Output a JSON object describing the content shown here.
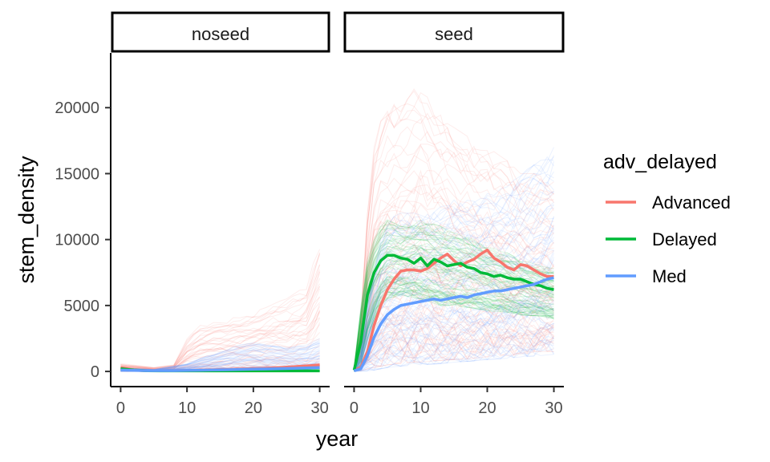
{
  "chart_data": {
    "type": "line",
    "facet_variable_values": [
      "noseed",
      "seed"
    ],
    "xlabel": "year",
    "ylabel": "stem_density",
    "xlim": [
      -1.5,
      31.5
    ],
    "ylim": [
      -1150,
      24150
    ],
    "x_ticks": [
      0,
      10,
      20,
      30
    ],
    "y_ticks": [
      0,
      5000,
      10000,
      15000,
      20000
    ],
    "x_tick_labels": [
      "0",
      "10",
      "20",
      "30"
    ],
    "y_tick_labels": [
      "0",
      "5000",
      "10000",
      "15000",
      "20000"
    ],
    "grid": false,
    "legend": {
      "title": "adv_delayed",
      "position": "right",
      "entries": [
        "Advanced",
        "Delayed",
        "Med"
      ]
    },
    "colors": {
      "Advanced": "#F8766D",
      "Delayed": "#00BA38",
      "Med": "#619CFF"
    },
    "panels": [
      {
        "facet": "noseed",
        "series": [
          {
            "name": "Advanced",
            "x": [
              0,
              2,
              4,
              6,
              8,
              10,
              12,
              14,
              16,
              18,
              20,
              22,
              24,
              26,
              28,
              30
            ],
            "y": [
              300,
              100,
              50,
              50,
              60,
              80,
              100,
              130,
              160,
              180,
              220,
              250,
              300,
              350,
              420,
              500
            ]
          },
          {
            "name": "Delayed",
            "x": [
              0,
              2,
              4,
              6,
              8,
              10,
              12,
              14,
              16,
              18,
              20,
              22,
              24,
              26,
              28,
              30
            ],
            "y": [
              200,
              100,
              50,
              40,
              40,
              40,
              40,
              40,
              40,
              40,
              40,
              40,
              40,
              40,
              40,
              40
            ]
          },
          {
            "name": "Med",
            "x": [
              0,
              2,
              4,
              6,
              8,
              10,
              12,
              14,
              16,
              18,
              20,
              22,
              24,
              26,
              28,
              30
            ],
            "y": [
              100,
              80,
              60,
              60,
              60,
              70,
              90,
              110,
              130,
              150,
              170,
              190,
              210,
              230,
              260,
              300
            ]
          }
        ],
        "ensemble_envelope": {
          "Advanced": {
            "x": [
              0,
              5,
              8,
              10,
              12,
              15,
              18,
              20,
              22,
              25,
              28,
              30
            ],
            "upper": [
              600,
              300,
              500,
              2500,
              3500,
              4000,
              4200,
              4500,
              5000,
              5500,
              6500,
              10000
            ]
          },
          "Med": {
            "x": [
              0,
              5,
              10,
              12,
              15,
              18,
              20,
              22,
              25,
              28,
              30
            ],
            "upper": [
              300,
              150,
              600,
              1000,
              1500,
              2000,
              2200,
              2000,
              1800,
              2000,
              2500
            ]
          }
        }
      },
      {
        "facet": "seed",
        "series": [
          {
            "name": "Advanced",
            "x": [
              0,
              1,
              2,
              3,
              4,
              5,
              6,
              7,
              8,
              9,
              10,
              11,
              12,
              13,
              14,
              15,
              16,
              17,
              18,
              19,
              20,
              21,
              22,
              23,
              24,
              25,
              26,
              27,
              28,
              29,
              30
            ],
            "y": [
              100,
              300,
              1500,
              3500,
              5000,
              6200,
              7000,
              7600,
              7700,
              7700,
              7600,
              7800,
              8200,
              8600,
              8900,
              8400,
              8000,
              8300,
              8500,
              8900,
              9200,
              8600,
              8300,
              7900,
              7700,
              8100,
              8000,
              7700,
              7400,
              7200,
              7200
            ]
          },
          {
            "name": "Delayed",
            "x": [
              0,
              1,
              2,
              3,
              4,
              5,
              6,
              7,
              8,
              9,
              10,
              11,
              12,
              13,
              14,
              15,
              16,
              17,
              18,
              19,
              20,
              21,
              22,
              23,
              24,
              25,
              26,
              27,
              28,
              29,
              30
            ],
            "y": [
              100,
              2200,
              5800,
              7500,
              8400,
              8800,
              8800,
              8600,
              8500,
              8200,
              8600,
              8000,
              8500,
              8300,
              8000,
              8100,
              8200,
              7900,
              7800,
              7500,
              7400,
              7200,
              7300,
              7100,
              7000,
              7000,
              6800,
              6600,
              6500,
              6300,
              6200
            ]
          },
          {
            "name": "Med",
            "x": [
              0,
              1,
              2,
              3,
              4,
              5,
              6,
              7,
              8,
              9,
              10,
              11,
              12,
              13,
              14,
              15,
              16,
              17,
              18,
              19,
              20,
              21,
              22,
              23,
              24,
              25,
              26,
              27,
              28,
              29,
              30
            ],
            "y": [
              50,
              200,
              1200,
              2600,
              3600,
              4300,
              4700,
              5000,
              5100,
              5200,
              5300,
              5400,
              5500,
              5400,
              5500,
              5600,
              5700,
              5600,
              5800,
              5900,
              6000,
              6100,
              6100,
              6200,
              6300,
              6400,
              6500,
              6600,
              6800,
              7000,
              7100
            ]
          }
        ],
        "ensemble_envelope": {
          "Advanced": {
            "x": [
              0,
              1,
              2,
              3,
              4,
              5,
              7,
              9,
              10,
              12,
              15,
              18,
              20,
              23,
              25,
              28,
              30
            ],
            "upper": [
              400,
              4000,
              12000,
              17000,
              19000,
              20000,
              20500,
              21500,
              22000,
              20000,
              18500,
              17500,
              17000,
              16000,
              15000,
              15000,
              14500
            ],
            "lower": [
              0,
              50,
              200,
              300,
              400,
              500,
              600,
              700,
              700,
              800,
              900,
              1000,
              1100,
              1200,
              1300,
              1500,
              1500
            ]
          },
          "Delayed": {
            "x": [
              0,
              1,
              2,
              3,
              4,
              5,
              7,
              10,
              13,
              15,
              18,
              20,
              23,
              25,
              28,
              30
            ],
            "upper": [
              300,
              5000,
              8500,
              10000,
              11000,
              11500,
              11000,
              11500,
              11000,
              10500,
              10000,
              9500,
              9000,
              8500,
              8000,
              7800
            ],
            "lower": [
              0,
              500,
              2500,
              4000,
              5000,
              5500,
              5800,
              5500,
              5000,
              5000,
              4800,
              4600,
              4500,
              4300,
              4200,
              4000
            ]
          },
          "Med": {
            "x": [
              0,
              1,
              2,
              3,
              4,
              5,
              7,
              10,
              13,
              15,
              18,
              20,
              23,
              25,
              28,
              30
            ],
            "upper": [
              200,
              1500,
              5000,
              8000,
              10000,
              11500,
              12000,
              12000,
              12500,
              13000,
              13000,
              13500,
              14000,
              15000,
              16000,
              17000
            ],
            "lower": [
              0,
              20,
              50,
              100,
              200,
              300,
              400,
              500,
              600,
              700,
              800,
              900,
              1000,
              1100,
              1200,
              1300
            ]
          }
        }
      }
    ]
  }
}
